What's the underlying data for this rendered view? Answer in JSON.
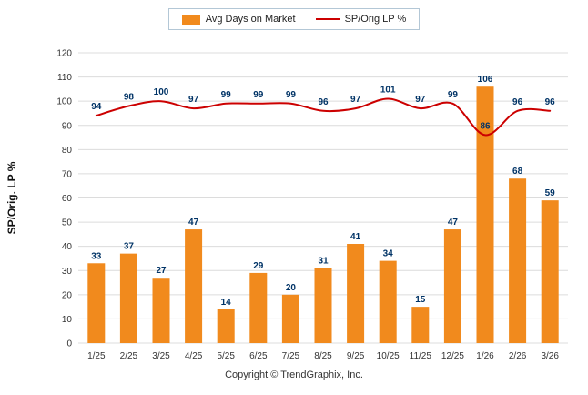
{
  "chart_data": {
    "type": "bar",
    "categories": [
      "1/25",
      "2/25",
      "3/25",
      "4/25",
      "5/25",
      "6/25",
      "7/25",
      "8/25",
      "9/25",
      "10/25",
      "11/25",
      "12/25",
      "1/26",
      "2/26",
      "3/26"
    ],
    "series": [
      {
        "name": "Avg Days on Market",
        "type": "bar",
        "color": "#F18A1D",
        "values": [
          33,
          37,
          27,
          47,
          14,
          29,
          20,
          31,
          41,
          34,
          15,
          47,
          106,
          68,
          59
        ]
      },
      {
        "name": "SP/Orig LP %",
        "type": "line",
        "color": "#CC0000",
        "values": [
          94,
          98,
          100,
          97,
          99,
          99,
          99,
          96,
          97,
          101,
          97,
          99,
          86,
          96,
          96
        ]
      }
    ],
    "title": "",
    "xlabel": "",
    "ylabel": "SP/Orig. LP %",
    "ylim": [
      0,
      120
    ],
    "ytick_step": 10,
    "grid": true,
    "legend_position": "top",
    "label_color": "#003366",
    "grid_color": "#dcdcdc",
    "axis_text_color": "#333333"
  },
  "legend": {
    "items": [
      {
        "label": "Avg Days on Market",
        "swatch": "bar",
        "color": "#F18A1D"
      },
      {
        "label": "SP/Orig LP %",
        "swatch": "line",
        "color": "#CC0000"
      }
    ]
  },
  "footer": {
    "copyright": "Copyright © TrendGraphix, Inc."
  }
}
